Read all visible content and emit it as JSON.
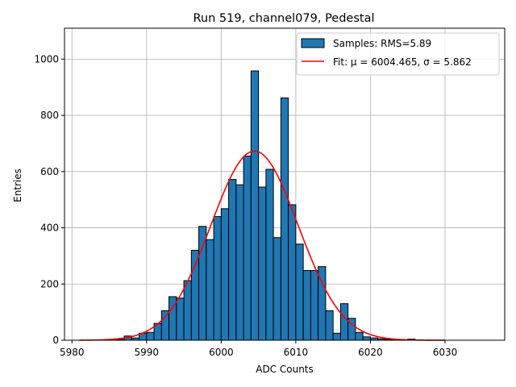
{
  "chart_data": {
    "type": "bar",
    "title": "Run 519, channel079, Pedestal",
    "xlabel": "ADC Counts",
    "ylabel": "Entries",
    "xlim": [
      5979,
      6038
    ],
    "ylim": [
      0,
      1110
    ],
    "xticks": [
      5980,
      5990,
      6000,
      6010,
      6020,
      6030
    ],
    "yticks": [
      0,
      200,
      400,
      600,
      800,
      1000
    ],
    "grid": true,
    "legend_position": "top-right",
    "bin_width": 1,
    "histogram": {
      "name": "Samples: RMS=5.89",
      "color": "#1f77b4",
      "bins": [
        {
          "x": 5986,
          "y": 3
        },
        {
          "x": 5987,
          "y": 15
        },
        {
          "x": 5988,
          "y": 8
        },
        {
          "x": 5989,
          "y": 25
        },
        {
          "x": 5990,
          "y": 28
        },
        {
          "x": 5991,
          "y": 60
        },
        {
          "x": 5992,
          "y": 105
        },
        {
          "x": 5993,
          "y": 155
        },
        {
          "x": 5994,
          "y": 150
        },
        {
          "x": 5995,
          "y": 212
        },
        {
          "x": 5996,
          "y": 320
        },
        {
          "x": 5997,
          "y": 405
        },
        {
          "x": 5998,
          "y": 358
        },
        {
          "x": 5999,
          "y": 440
        },
        {
          "x": 6000,
          "y": 468
        },
        {
          "x": 6001,
          "y": 572
        },
        {
          "x": 6002,
          "y": 553
        },
        {
          "x": 6003,
          "y": 655
        },
        {
          "x": 6004,
          "y": 958
        },
        {
          "x": 6005,
          "y": 545
        },
        {
          "x": 6006,
          "y": 608
        },
        {
          "x": 6007,
          "y": 365
        },
        {
          "x": 6008,
          "y": 862
        },
        {
          "x": 6009,
          "y": 482
        },
        {
          "x": 6010,
          "y": 342
        },
        {
          "x": 6011,
          "y": 248
        },
        {
          "x": 6012,
          "y": 248
        },
        {
          "x": 6013,
          "y": 262
        },
        {
          "x": 6014,
          "y": 105
        },
        {
          "x": 6015,
          "y": 25
        },
        {
          "x": 6016,
          "y": 130
        },
        {
          "x": 6017,
          "y": 78
        },
        {
          "x": 6018,
          "y": 28
        },
        {
          "x": 6019,
          "y": 12
        },
        {
          "x": 6020,
          "y": 8
        },
        {
          "x": 6021,
          "y": 5
        },
        {
          "x": 6022,
          "y": 3
        },
        {
          "x": 6023,
          "y": 2
        },
        {
          "x": 6025,
          "y": 4
        }
      ]
    },
    "fit": {
      "name": "Fit: μ = 6004.465, σ = 5.862",
      "color": "#ff0000",
      "mu": 6004.465,
      "sigma": 5.862,
      "amplitude": 673,
      "x_range": [
        5981,
        6030
      ]
    }
  }
}
